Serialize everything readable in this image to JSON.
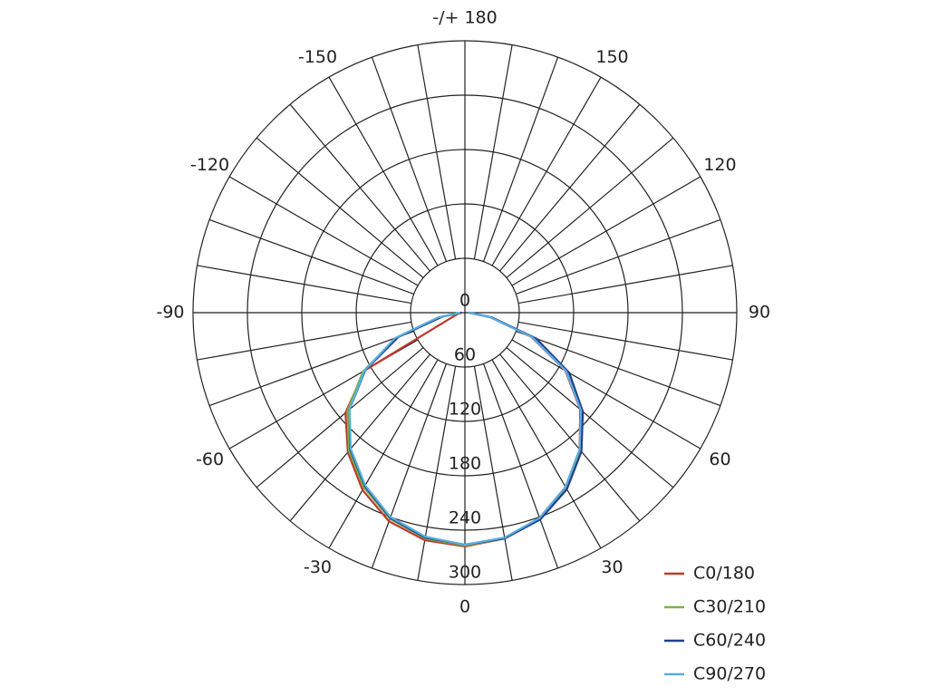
{
  "chart_data": {
    "type": "polar",
    "rlim": [
      0,
      300
    ],
    "rticks": [
      0,
      60,
      120,
      180,
      240,
      300
    ],
    "thetaticks": [
      0,
      30,
      60,
      90,
      120,
      150,
      {
        "value": 180,
        "label": "-/+ 180"
      },
      -150,
      -120,
      -90,
      -60,
      -30
    ],
    "theta_grid_step": 10,
    "theta": [
      -90,
      -80,
      -70,
      -60,
      -50,
      -40,
      -30,
      -20,
      -10,
      0,
      10,
      20,
      30,
      40,
      50,
      60,
      70,
      80,
      90
    ],
    "series": [
      {
        "name": "C0/180",
        "color": "#c0392b",
        "values": [
          3,
          8,
          15,
          128,
          172,
          201,
          226,
          245,
          255,
          258,
          253,
          241,
          222,
          197,
          166,
          128,
          78,
          28,
          4
        ]
      },
      {
        "name": "C30/210",
        "color": "#7cb342",
        "values": [
          4,
          28,
          80,
          130,
          169,
          199,
          223,
          242,
          253,
          257,
          253,
          242,
          223,
          198,
          168,
          130,
          80,
          28,
          4
        ]
      },
      {
        "name": "C60/240",
        "color": "#1f3f8f",
        "values": [
          4,
          25,
          78,
          127,
          166,
          197,
          221,
          241,
          252,
          256,
          253,
          243,
          225,
          200,
          170,
          133,
          84,
          30,
          5
        ]
      },
      {
        "name": "C90/270",
        "color": "#5aaee0",
        "values": [
          5,
          30,
          82,
          128,
          166,
          196,
          220,
          240,
          251,
          256,
          252,
          241,
          222,
          197,
          167,
          129,
          79,
          28,
          4
        ]
      }
    ]
  }
}
